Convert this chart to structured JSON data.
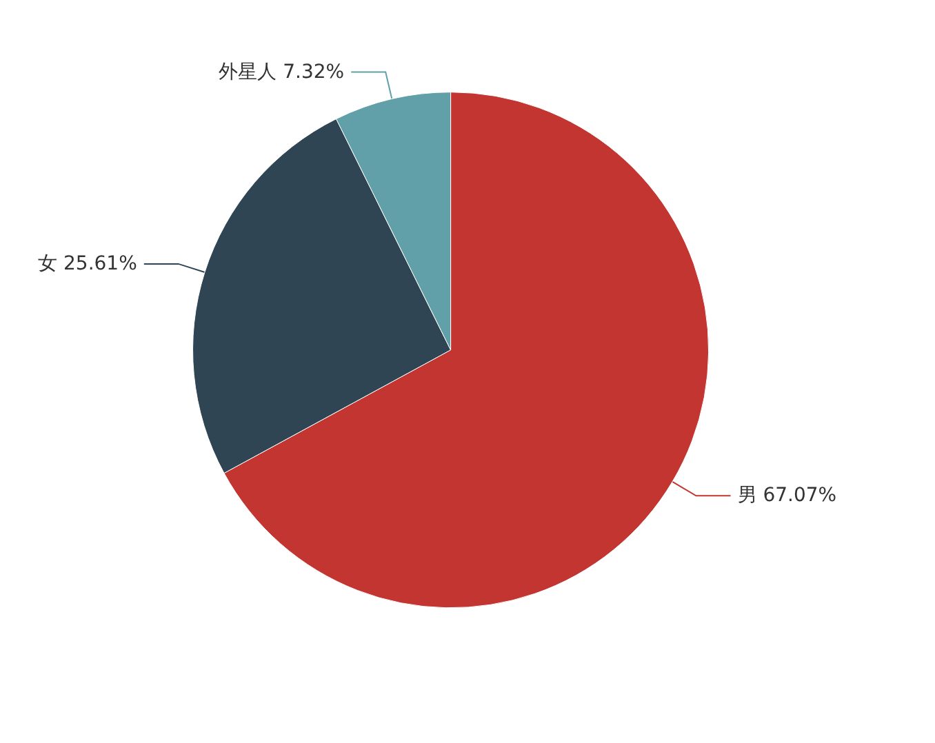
{
  "chart_data": {
    "type": "pie",
    "categories": [
      "男",
      "女",
      "外星人"
    ],
    "values": [
      67.07,
      25.61,
      7.32
    ],
    "value_labels": [
      "67.07%",
      "25.61%",
      "7.32%"
    ],
    "colors": [
      "#c23531",
      "#2f4554",
      "#61a0a8"
    ],
    "legend": false
  }
}
